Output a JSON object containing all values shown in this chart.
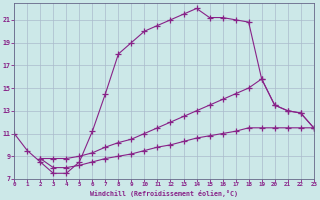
{
  "xlabel": "Windchill (Refroidissement éolien,°C)",
  "bg_color": "#cce8e8",
  "grid_color": "#aabbcc",
  "line_color": "#882288",
  "xlim": [
    0,
    23
  ],
  "ylim": [
    7,
    22.5
  ],
  "yticks": [
    7,
    9,
    11,
    13,
    15,
    17,
    19,
    21
  ],
  "xticks": [
    0,
    1,
    2,
    3,
    4,
    5,
    6,
    7,
    8,
    9,
    10,
    11,
    12,
    13,
    14,
    15,
    16,
    17,
    18,
    19,
    20,
    21,
    22,
    23
  ],
  "series1_x": [
    0,
    1,
    2,
    3,
    4,
    5,
    6,
    7,
    8,
    9,
    10,
    11,
    12,
    13,
    14,
    15,
    16,
    17,
    18,
    19,
    20,
    21,
    22,
    23
  ],
  "series1_y": [
    11.0,
    9.5,
    8.5,
    7.5,
    7.5,
    8.5,
    11.2,
    14.5,
    18.0,
    19.0,
    20.0,
    20.5,
    21.0,
    21.5,
    22.0,
    21.2,
    21.2,
    21.0,
    20.8,
    15.8,
    13.5,
    13.0,
    12.8,
    11.5
  ],
  "series2_x": [
    2,
    3,
    4,
    5,
    6,
    7,
    8,
    9,
    10,
    11,
    12,
    13,
    14,
    15,
    16,
    17,
    18,
    19,
    20,
    21,
    22,
    23
  ],
  "series2_y": [
    8.8,
    8.8,
    8.8,
    9.0,
    9.3,
    9.8,
    10.2,
    10.5,
    11.0,
    11.5,
    12.0,
    12.5,
    13.0,
    13.5,
    14.0,
    14.5,
    15.0,
    15.8,
    13.5,
    13.0,
    12.8,
    11.5
  ],
  "series3_x": [
    2,
    3,
    4,
    5,
    6,
    7,
    8,
    9,
    10,
    11,
    12,
    13,
    14,
    15,
    16,
    17,
    18,
    19,
    20,
    21,
    22,
    23
  ],
  "series3_y": [
    8.8,
    8.0,
    8.0,
    8.2,
    8.5,
    8.8,
    9.0,
    9.2,
    9.5,
    9.8,
    10.0,
    10.3,
    10.6,
    10.8,
    11.0,
    11.2,
    11.5,
    11.5,
    11.5,
    11.5,
    11.5,
    11.5
  ]
}
